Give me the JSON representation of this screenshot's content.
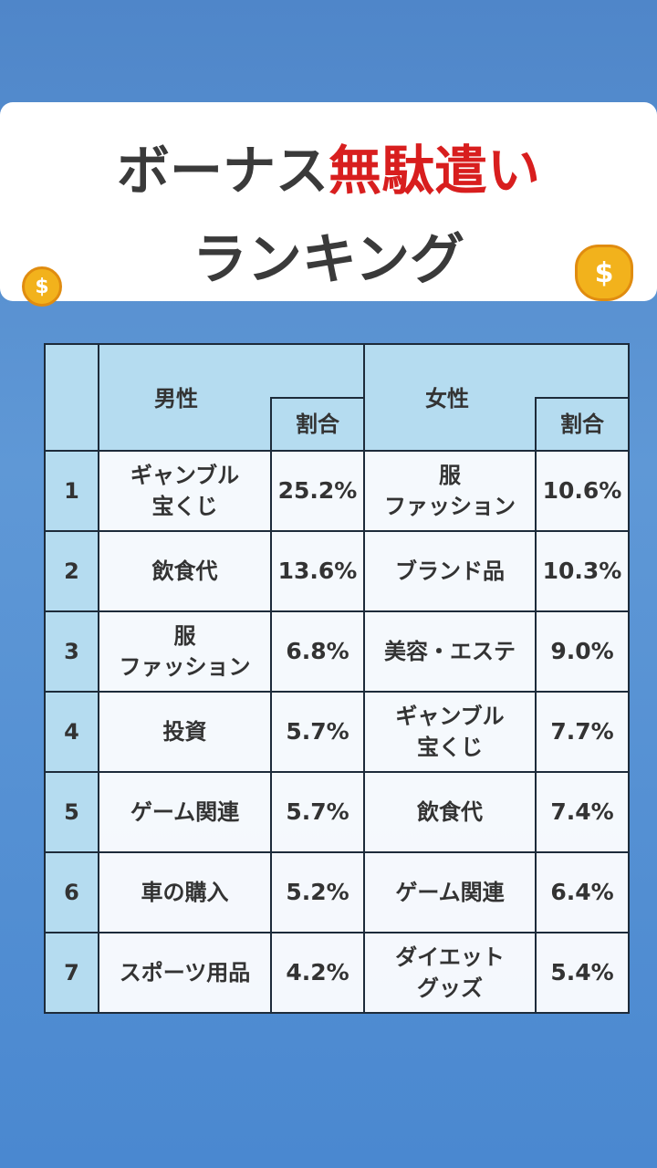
{
  "header": {
    "title_start": "ボーナス",
    "title_highlight": "無駄遣い",
    "title_line2": "ランキング"
  },
  "table": {
    "male_header": "男性",
    "female_header": "女性",
    "male_share_header": "割合",
    "female_share_header": "割合",
    "rows": [
      [
        "1",
        "ギャンブル\n宝くじ",
        "25.2%",
        "服\nファッション",
        "10.6%"
      ],
      [
        "2",
        "飲食代",
        "13.6%",
        "ブランド品",
        "10.3%"
      ],
      [
        "3",
        "服\nファッション",
        "6.8%",
        "美容・エステ",
        "9.0%"
      ],
      [
        "4",
        "投資",
        "5.7%",
        "ギャンブル\n宝くじ",
        "7.7%"
      ],
      [
        "5",
        "ゲーム関連",
        "5.7%",
        "飲食代",
        "7.4%"
      ],
      [
        "6",
        "車の購入",
        "5.2%",
        "ゲーム関連",
        "6.4%"
      ],
      [
        "7",
        "スポーツ用品",
        "4.2%",
        "ダイエット\nグッズ",
        "5.4%"
      ]
    ]
  }
}
